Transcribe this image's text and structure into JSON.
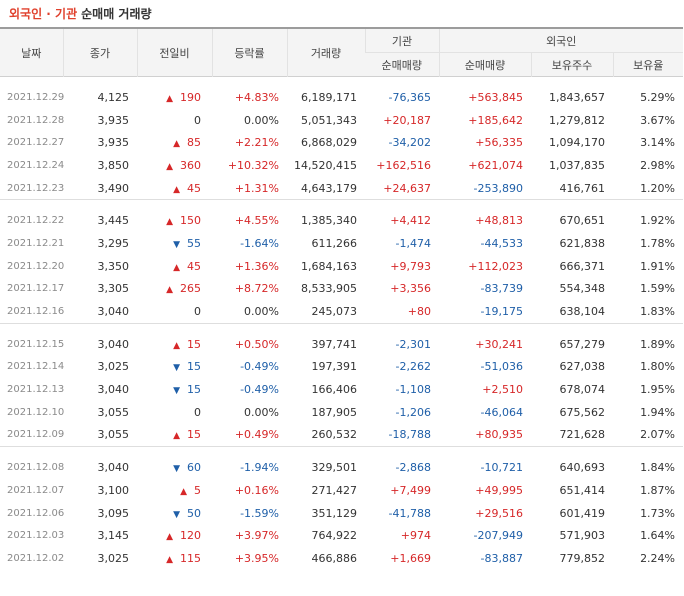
{
  "title": {
    "accent": "외국인 · 기관",
    "main": "순매매 거래량"
  },
  "headers": {
    "date": "날짜",
    "close": "종가",
    "change": "전일비",
    "rate": "등락률",
    "volume": "거래량",
    "inst_group": "기관",
    "inst_net": "순매매량",
    "foreign_group": "외국인",
    "foreign_net": "순매매량",
    "foreign_holdings": "보유주수",
    "foreign_ratio": "보유율"
  },
  "groups": [
    {
      "rows": [
        {
          "date": "2021.12.29",
          "close": "4,125",
          "dir": "up",
          "change": "190",
          "rate": "+4.83%",
          "volume": "6,189,171",
          "inst": "-76,365",
          "foreign": "+563,845",
          "holdings": "1,843,657",
          "ratio": "5.29%"
        },
        {
          "date": "2021.12.28",
          "close": "3,935",
          "dir": "flat",
          "change": "0",
          "rate": "0.00%",
          "volume": "5,051,343",
          "inst": "+20,187",
          "foreign": "+185,642",
          "holdings": "1,279,812",
          "ratio": "3.67%"
        },
        {
          "date": "2021.12.27",
          "close": "3,935",
          "dir": "up",
          "change": "85",
          "rate": "+2.21%",
          "volume": "6,868,029",
          "inst": "-34,202",
          "foreign": "+56,335",
          "holdings": "1,094,170",
          "ratio": "3.14%"
        },
        {
          "date": "2021.12.24",
          "close": "3,850",
          "dir": "up",
          "change": "360",
          "rate": "+10.32%",
          "volume": "14,520,415",
          "inst": "+162,516",
          "foreign": "+621,074",
          "holdings": "1,037,835",
          "ratio": "2.98%"
        },
        {
          "date": "2021.12.23",
          "close": "3,490",
          "dir": "up",
          "change": "45",
          "rate": "+1.31%",
          "volume": "4,643,179",
          "inst": "+24,637",
          "foreign": "-253,890",
          "holdings": "416,761",
          "ratio": "1.20%"
        }
      ]
    },
    {
      "rows": [
        {
          "date": "2021.12.22",
          "close": "3,445",
          "dir": "up",
          "change": "150",
          "rate": "+4.55%",
          "volume": "1,385,340",
          "inst": "+4,412",
          "foreign": "+48,813",
          "holdings": "670,651",
          "ratio": "1.92%"
        },
        {
          "date": "2021.12.21",
          "close": "3,295",
          "dir": "down",
          "change": "55",
          "rate": "-1.64%",
          "volume": "611,266",
          "inst": "-1,474",
          "foreign": "-44,533",
          "holdings": "621,838",
          "ratio": "1.78%"
        },
        {
          "date": "2021.12.20",
          "close": "3,350",
          "dir": "up",
          "change": "45",
          "rate": "+1.36%",
          "volume": "1,684,163",
          "inst": "+9,793",
          "foreign": "+112,023",
          "holdings": "666,371",
          "ratio": "1.91%"
        },
        {
          "date": "2021.12.17",
          "close": "3,305",
          "dir": "up",
          "change": "265",
          "rate": "+8.72%",
          "volume": "8,533,905",
          "inst": "+3,356",
          "foreign": "-83,739",
          "holdings": "554,348",
          "ratio": "1.59%"
        },
        {
          "date": "2021.12.16",
          "close": "3,040",
          "dir": "flat",
          "change": "0",
          "rate": "0.00%",
          "volume": "245,073",
          "inst": "+80",
          "foreign": "-19,175",
          "holdings": "638,104",
          "ratio": "1.83%"
        }
      ]
    },
    {
      "rows": [
        {
          "date": "2021.12.15",
          "close": "3,040",
          "dir": "up",
          "change": "15",
          "rate": "+0.50%",
          "volume": "397,741",
          "inst": "-2,301",
          "foreign": "+30,241",
          "holdings": "657,279",
          "ratio": "1.89%"
        },
        {
          "date": "2021.12.14",
          "close": "3,025",
          "dir": "down",
          "change": "15",
          "rate": "-0.49%",
          "volume": "197,391",
          "inst": "-2,262",
          "foreign": "-51,036",
          "holdings": "627,038",
          "ratio": "1.80%"
        },
        {
          "date": "2021.12.13",
          "close": "3,040",
          "dir": "down",
          "change": "15",
          "rate": "-0.49%",
          "volume": "166,406",
          "inst": "-1,108",
          "foreign": "+2,510",
          "holdings": "678,074",
          "ratio": "1.95%"
        },
        {
          "date": "2021.12.10",
          "close": "3,055",
          "dir": "flat",
          "change": "0",
          "rate": "0.00%",
          "volume": "187,905",
          "inst": "-1,206",
          "foreign": "-46,064",
          "holdings": "675,562",
          "ratio": "1.94%"
        },
        {
          "date": "2021.12.09",
          "close": "3,055",
          "dir": "up",
          "change": "15",
          "rate": "+0.49%",
          "volume": "260,532",
          "inst": "-18,788",
          "foreign": "+80,935",
          "holdings": "721,628",
          "ratio": "2.07%"
        }
      ]
    },
    {
      "rows": [
        {
          "date": "2021.12.08",
          "close": "3,040",
          "dir": "down",
          "change": "60",
          "rate": "-1.94%",
          "volume": "329,501",
          "inst": "-2,868",
          "foreign": "-10,721",
          "holdings": "640,693",
          "ratio": "1.84%"
        },
        {
          "date": "2021.12.07",
          "close": "3,100",
          "dir": "up",
          "change": "5",
          "rate": "+0.16%",
          "volume": "271,427",
          "inst": "+7,499",
          "foreign": "+49,995",
          "holdings": "651,414",
          "ratio": "1.87%"
        },
        {
          "date": "2021.12.06",
          "close": "3,095",
          "dir": "down",
          "change": "50",
          "rate": "-1.59%",
          "volume": "351,129",
          "inst": "-41,788",
          "foreign": "+29,516",
          "holdings": "601,419",
          "ratio": "1.73%"
        },
        {
          "date": "2021.12.03",
          "close": "3,145",
          "dir": "up",
          "change": "120",
          "rate": "+3.97%",
          "volume": "764,922",
          "inst": "+974",
          "foreign": "-207,949",
          "holdings": "571,903",
          "ratio": "1.64%"
        },
        {
          "date": "2021.12.02",
          "close": "3,025",
          "dir": "up",
          "change": "115",
          "rate": "+3.95%",
          "volume": "466,886",
          "inst": "+1,669",
          "foreign": "-83,887",
          "holdings": "779,852",
          "ratio": "2.24%"
        }
      ]
    }
  ],
  "icons": {
    "up": "triangle-up-icon",
    "down": "triangle-down-icon"
  },
  "colors": {
    "up": "#d62728",
    "down": "#1f5fa8",
    "title_accent": "#e0412d"
  }
}
